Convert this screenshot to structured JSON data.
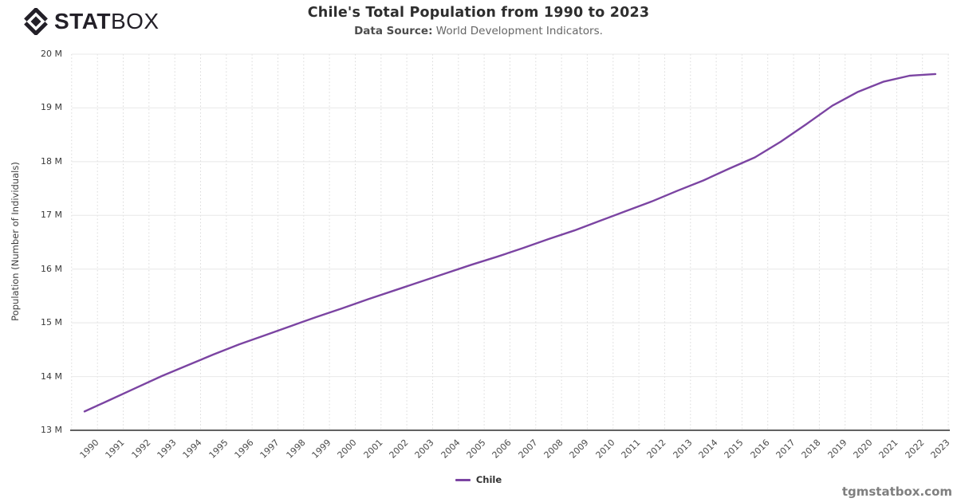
{
  "logo": {
    "bold": "STAT",
    "light": "BOX"
  },
  "header": {
    "title": "Chile's Total Population from 1990 to 2023",
    "source_label": "Data Source:",
    "source_value": "World Development Indicators."
  },
  "legend": {
    "items": [
      {
        "label": "Chile",
        "color": "#7b44a2"
      }
    ]
  },
  "footer": {
    "watermark": "tgmstatbox.com"
  },
  "colors": {
    "line": "#7b44a2",
    "axis": "#2f2f2f",
    "grid_horizontal": "#e8e8e8",
    "grid_vertical": "#d9d9d9",
    "title_text": "#2e2e2e",
    "subtitle_text": "#666666",
    "watermark_text": "#7f7f7f"
  },
  "chart_data": {
    "type": "line",
    "title": "Chile's Total Population from 1990 to 2023",
    "subtitle": "Data Source: World Development Indicators.",
    "xlabel": "",
    "ylabel": "Population (Number of Individuals)",
    "unit": "M",
    "ylim": [
      13,
      20
    ],
    "ytick_step": 1,
    "ytick_labels": [
      "13 M",
      "14 M",
      "15 M",
      "16 M",
      "17 M",
      "18 M",
      "19 M",
      "20 M"
    ],
    "grid": {
      "horizontal": "solid",
      "vertical": "dotted"
    },
    "legend_position": "bottom-center",
    "categories": [
      "1990",
      "1991",
      "1992",
      "1993",
      "1994",
      "1995",
      "1996",
      "1997",
      "1998",
      "1999",
      "2000",
      "2001",
      "2002",
      "2003",
      "2004",
      "2005",
      "2006",
      "2007",
      "2008",
      "2009",
      "2010",
      "2011",
      "2012",
      "2013",
      "2014",
      "2015",
      "2016",
      "2017",
      "2018",
      "2019",
      "2020",
      "2021",
      "2022",
      "2023"
    ],
    "series": [
      {
        "name": "Chile",
        "color": "#7b44a2",
        "values": [
          13.35,
          13.57,
          13.79,
          14.01,
          14.21,
          14.41,
          14.6,
          14.77,
          14.94,
          15.11,
          15.27,
          15.44,
          15.6,
          15.76,
          15.92,
          16.08,
          16.23,
          16.39,
          16.56,
          16.72,
          16.9,
          17.08,
          17.26,
          17.46,
          17.65,
          17.87,
          18.08,
          18.37,
          18.7,
          19.04,
          19.3,
          19.49,
          19.6,
          19.63
        ]
      }
    ]
  }
}
